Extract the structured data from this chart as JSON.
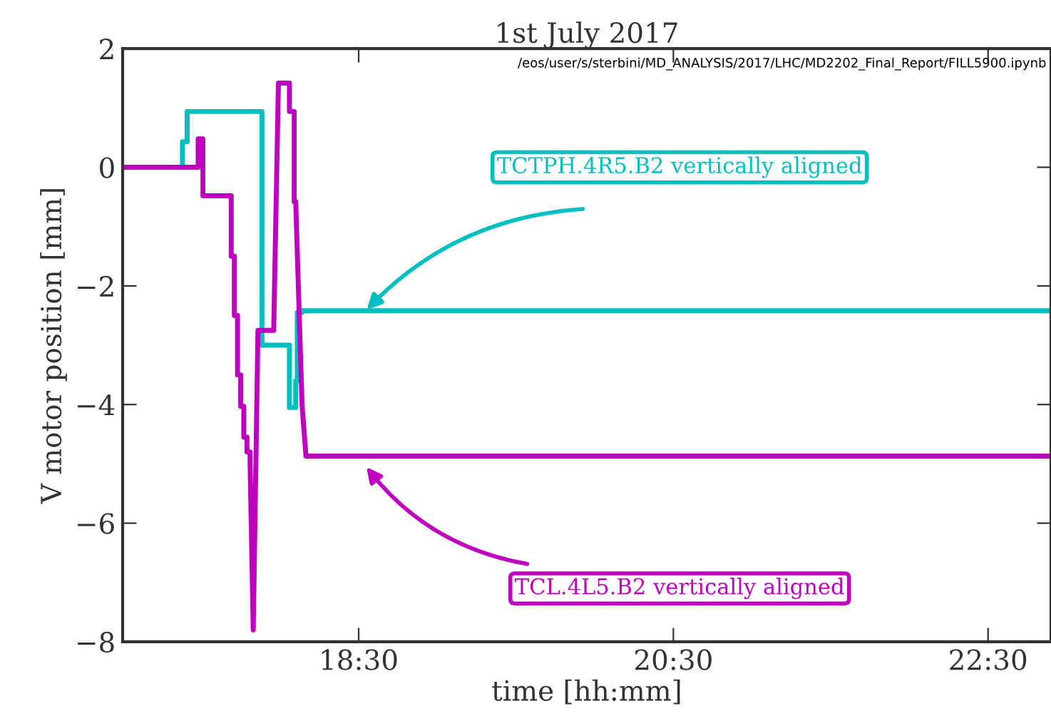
{
  "chart_data": {
    "type": "line",
    "title": "1st July 2017",
    "xlabel": "time [hh:mm]",
    "ylabel": "V motor position [mm]",
    "xlim": [
      17.0,
      22.9
    ],
    "xticks": [
      {
        "value": 18.5,
        "label": "18:30"
      },
      {
        "value": 20.5,
        "label": "20:30"
      },
      {
        "value": 22.5,
        "label": "22:30"
      }
    ],
    "ylim": [
      -8,
      2
    ],
    "yticks": [
      -8,
      -6,
      -4,
      -2,
      0,
      2
    ],
    "grid": false,
    "legend": false,
    "marker": "none",
    "line_style": "solid",
    "series": [
      {
        "color": "#00bfbf",
        "x": [
          17.0,
          17.38,
          17.38,
          17.41,
          17.41,
          17.885,
          17.885,
          18.06,
          18.06,
          18.1,
          18.1,
          18.11,
          18.11,
          18.14,
          18.14,
          22.9
        ],
        "values": [
          0,
          0,
          0.43,
          0.43,
          0.94,
          0.94,
          -3.0,
          -3.0,
          -4.05,
          -4.05,
          -3.6,
          -3.6,
          -2.45,
          -2.45,
          -2.42,
          -2.42
        ]
      },
      {
        "color": "#bf00bf",
        "x": [
          17.0,
          17.48,
          17.48,
          17.51,
          17.51,
          17.69,
          17.69,
          17.71,
          17.71,
          17.73,
          17.73,
          17.75,
          17.75,
          17.77,
          17.77,
          17.79,
          17.79,
          17.81,
          17.81,
          17.83,
          17.86,
          17.86,
          17.96,
          17.99,
          18.06,
          18.06,
          18.09,
          18.09,
          18.1,
          18.14,
          18.165,
          18.165,
          22.9
        ],
        "values": [
          0,
          0,
          0.48,
          0.48,
          -0.48,
          -0.48,
          -1.5,
          -1.5,
          -2.5,
          -2.5,
          -3.5,
          -3.5,
          -4.03,
          -4.03,
          -4.55,
          -4.55,
          -4.8,
          -4.8,
          -5.0,
          -7.8,
          -2.75,
          -2.75,
          -2.75,
          1.42,
          1.42,
          0.94,
          0.94,
          -0.58,
          -0.58,
          -4.0,
          -4.87,
          -4.87,
          -4.87
        ]
      }
    ],
    "annotations": [
      "TCTPH.4R5.B2 vertically aligned",
      "TCL.4L5.B2 vertically aligned",
      "/eos/user/s/sterbini/MD_ANALYSIS/2017/LHC/MD2202_Final_Report/FILL5900.ipynb"
    ]
  }
}
